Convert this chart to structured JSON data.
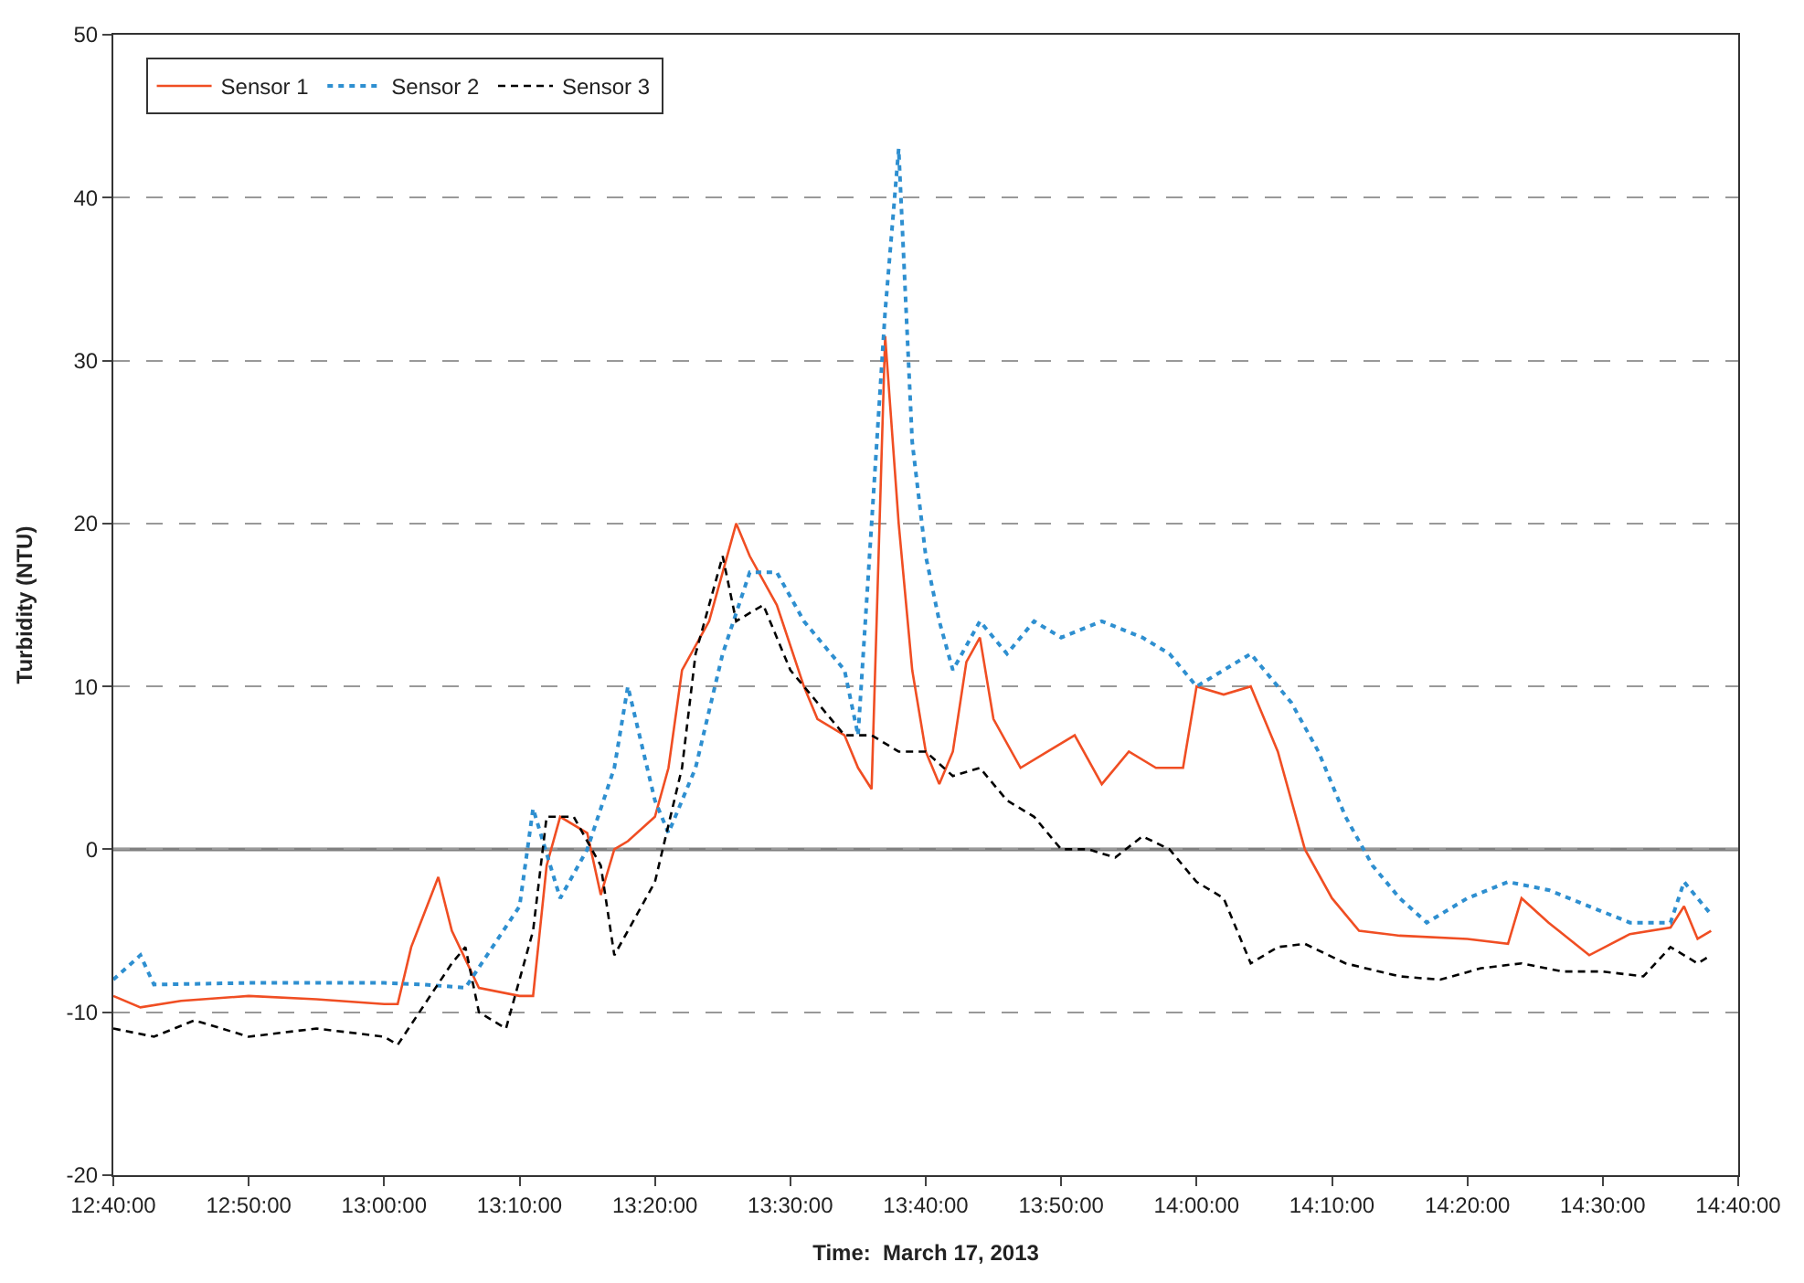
{
  "chart_data": {
    "type": "line",
    "xlabel": "Time:  March 17, 2013",
    "ylabel": "Turbidity (NTU)",
    "xlim": [
      "2013-03-17T12:40",
      "2013-03-17T14:40"
    ],
    "xticks": [
      {
        "value": "2013-03-17T12:40",
        "label": "12:40:00"
      },
      {
        "value": "2013-03-17T12:50",
        "label": "12:50:00"
      },
      {
        "value": "2013-03-17T13:00",
        "label": "13:00:00"
      },
      {
        "value": "2013-03-17T13:10",
        "label": "13:10:00"
      },
      {
        "value": "2013-03-17T13:20",
        "label": "13:20:00"
      },
      {
        "value": "2013-03-17T13:30",
        "label": "13:30:00"
      },
      {
        "value": "2013-03-17T13:40",
        "label": "13:40:00"
      },
      {
        "value": "2013-03-17T13:50",
        "label": "13:50:00"
      },
      {
        "value": "2013-03-17T14:00",
        "label": "14:00:00"
      },
      {
        "value": "2013-03-17T14:10",
        "label": "14:10:00"
      },
      {
        "value": "2013-03-17T14:20",
        "label": "14:20:00"
      },
      {
        "value": "2013-03-17T14:30",
        "label": "14:30:00"
      },
      {
        "value": "2013-03-17T14:40",
        "label": "14:40:00"
      }
    ],
    "ylim": [
      -20,
      50
    ],
    "yticks": [
      -20,
      -10,
      0,
      10,
      20,
      30,
      40,
      50
    ],
    "ref_lines": [
      {
        "axis": "y",
        "value": 0,
        "color": "#808080"
      }
    ],
    "grid": "y",
    "legend": "top left",
    "marker": "none",
    "series": [
      {
        "name": "Sensor 1",
        "color": "#f04e23",
        "line_style": "solid",
        "x": [
          "2013-03-17T12:40",
          "2013-03-17T12:42",
          "2013-03-17T12:45",
          "2013-03-17T12:50",
          "2013-03-17T12:55",
          "2013-03-17T13:00",
          "2013-03-17T13:01",
          "2013-03-17T13:02",
          "2013-03-17T13:04",
          "2013-03-17T13:05",
          "2013-03-17T13:07",
          "2013-03-17T13:10",
          "2013-03-17T13:11",
          "2013-03-17T13:12",
          "2013-03-17T13:13",
          "2013-03-17T13:15",
          "2013-03-17T13:16",
          "2013-03-17T13:17",
          "2013-03-17T13:18",
          "2013-03-17T13:20",
          "2013-03-17T13:21",
          "2013-03-17T13:22",
          "2013-03-17T13:24",
          "2013-03-17T13:26",
          "2013-03-17T13:27",
          "2013-03-17T13:29",
          "2013-03-17T13:31",
          "2013-03-17T13:32",
          "2013-03-17T13:34",
          "2013-03-17T13:35",
          "2013-03-17T13:36",
          "2013-03-17T13:37",
          "2013-03-17T13:38",
          "2013-03-17T13:39",
          "2013-03-17T13:40",
          "2013-03-17T13:41",
          "2013-03-17T13:42",
          "2013-03-17T13:43",
          "2013-03-17T13:44",
          "2013-03-17T13:45",
          "2013-03-17T13:47",
          "2013-03-17T13:49",
          "2013-03-17T13:51",
          "2013-03-17T13:53",
          "2013-03-17T13:55",
          "2013-03-17T13:57",
          "2013-03-17T13:59",
          "2013-03-17T14:00",
          "2013-03-17T14:02",
          "2013-03-17T14:04",
          "2013-03-17T14:05",
          "2013-03-17T14:06",
          "2013-03-17T14:08",
          "2013-03-17T14:10",
          "2013-03-17T14:12",
          "2013-03-17T14:15",
          "2013-03-17T14:20",
          "2013-03-17T14:23",
          "2013-03-17T14:24",
          "2013-03-17T14:26",
          "2013-03-17T14:29",
          "2013-03-17T14:32",
          "2013-03-17T14:35",
          "2013-03-17T14:36",
          "2013-03-17T14:37",
          "2013-03-17T14:38"
        ],
        "values": [
          -9,
          -9.7,
          -9.3,
          -9,
          -9.2,
          -9.5,
          -9.5,
          -6,
          -1.7,
          -5,
          -8.5,
          -9,
          -9,
          -1,
          2,
          1,
          -2.8,
          0,
          0.5,
          2,
          5,
          11,
          14,
          20,
          18,
          15,
          10,
          8,
          7,
          5,
          3.7,
          31.5,
          20,
          11,
          6,
          4,
          6,
          11.5,
          13,
          8,
          5,
          6,
          7,
          4,
          6,
          5,
          5,
          10,
          9.5,
          10,
          8,
          6,
          0,
          -3,
          -5,
          -5.3,
          -5.5,
          -5.8,
          -3,
          -4.5,
          -6.5,
          -5.2,
          -4.8,
          -3.5,
          -5.5,
          -5
        ]
      },
      {
        "name": "Sensor 2",
        "color": "#2e8fd0",
        "line_style": "dotted",
        "x": [
          "2013-03-17T12:40",
          "2013-03-17T12:42",
          "2013-03-17T12:43",
          "2013-03-17T12:50",
          "2013-03-17T13:00",
          "2013-03-17T13:03",
          "2013-03-17T13:06",
          "2013-03-17T13:08",
          "2013-03-17T13:10",
          "2013-03-17T13:11",
          "2013-03-17T13:13",
          "2013-03-17T13:15",
          "2013-03-17T13:17",
          "2013-03-17T13:18",
          "2013-03-17T13:20",
          "2013-03-17T13:21",
          "2013-03-17T13:23",
          "2013-03-17T13:25",
          "2013-03-17T13:27",
          "2013-03-17T13:29",
          "2013-03-17T13:31",
          "2013-03-17T13:33",
          "2013-03-17T13:34",
          "2013-03-17T13:35",
          "2013-03-17T13:36",
          "2013-03-17T13:37",
          "2013-03-17T13:38",
          "2013-03-17T13:39",
          "2013-03-17T13:40",
          "2013-03-17T13:41",
          "2013-03-17T13:42",
          "2013-03-17T13:44",
          "2013-03-17T13:46",
          "2013-03-17T13:48",
          "2013-03-17T13:50",
          "2013-03-17T13:53",
          "2013-03-17T13:56",
          "2013-03-17T13:58",
          "2013-03-17T14:00",
          "2013-03-17T14:02",
          "2013-03-17T14:04",
          "2013-03-17T14:07",
          "2013-03-17T14:09",
          "2013-03-17T14:11",
          "2013-03-17T14:13",
          "2013-03-17T14:15",
          "2013-03-17T14:17",
          "2013-03-17T14:20",
          "2013-03-17T14:23",
          "2013-03-17T14:26",
          "2013-03-17T14:29",
          "2013-03-17T14:32",
          "2013-03-17T14:35",
          "2013-03-17T14:36",
          "2013-03-17T14:38"
        ],
        "values": [
          -8,
          -6.5,
          -8.3,
          -8.2,
          -8.2,
          -8.3,
          -8.5,
          -6,
          -3.5,
          2.5,
          -3,
          0,
          5,
          10,
          3,
          1,
          5,
          12,
          17,
          17,
          14,
          12,
          11,
          7,
          20,
          33,
          43,
          25,
          18,
          14,
          11,
          14,
          12,
          14,
          13,
          14,
          13,
          12,
          10,
          11,
          12,
          9,
          6,
          2,
          -1,
          -3,
          -4.5,
          -3,
          -2,
          -2.5,
          -3.5,
          -4.5,
          -4.5,
          -2,
          -4
        ]
      },
      {
        "name": "Sensor 3",
        "color": "#000000",
        "line_style": "dashed",
        "x": [
          "2013-03-17T12:40",
          "2013-03-17T12:43",
          "2013-03-17T12:46",
          "2013-03-17T12:50",
          "2013-03-17T12:55",
          "2013-03-17T13:00",
          "2013-03-17T13:01",
          "2013-03-17T13:03",
          "2013-03-17T13:05",
          "2013-03-17T13:06",
          "2013-03-17T13:07",
          "2013-03-17T13:09",
          "2013-03-17T13:11",
          "2013-03-17T13:12",
          "2013-03-17T13:14",
          "2013-03-17T13:16",
          "2013-03-17T13:17",
          "2013-03-17T13:20",
          "2013-03-17T13:22",
          "2013-03-17T13:23",
          "2013-03-17T13:25",
          "2013-03-17T13:26",
          "2013-03-17T13:28",
          "2013-03-17T13:30",
          "2013-03-17T13:32",
          "2013-03-17T13:34",
          "2013-03-17T13:36",
          "2013-03-17T13:38",
          "2013-03-17T13:40",
          "2013-03-17T13:42",
          "2013-03-17T13:44",
          "2013-03-17T13:46",
          "2013-03-17T13:48",
          "2013-03-17T13:50",
          "2013-03-17T13:52",
          "2013-03-17T13:54",
          "2013-03-17T13:56",
          "2013-03-17T13:58",
          "2013-03-17T14:00",
          "2013-03-17T14:02",
          "2013-03-17T14:04",
          "2013-03-17T14:06",
          "2013-03-17T14:08",
          "2013-03-17T14:11",
          "2013-03-17T14:15",
          "2013-03-17T14:18",
          "2013-03-17T14:21",
          "2013-03-17T14:24",
          "2013-03-17T14:27",
          "2013-03-17T14:30",
          "2013-03-17T14:33",
          "2013-03-17T14:35",
          "2013-03-17T14:37",
          "2013-03-17T14:38"
        ],
        "values": [
          -11,
          -11.5,
          -10.5,
          -11.5,
          -11,
          -11.5,
          -12,
          -9.5,
          -7,
          -6,
          -10,
          -11,
          -5,
          2,
          2,
          -1,
          -6.5,
          -2,
          5,
          12,
          18,
          14,
          15,
          11,
          9,
          7,
          7,
          6,
          6,
          4.5,
          5,
          3,
          2,
          0,
          0,
          -0.5,
          0.8,
          0,
          -2,
          -3,
          -7,
          -6,
          -5.8,
          -7,
          -7.8,
          -8,
          -7.3,
          -7,
          -7.5,
          -7.5,
          -7.8,
          -6,
          -7,
          -6.5
        ]
      }
    ]
  }
}
